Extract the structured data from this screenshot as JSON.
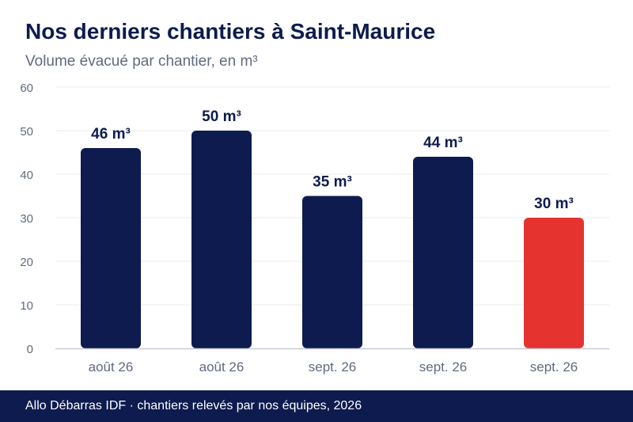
{
  "header": {
    "title": "Nos derniers chantiers à Saint-Maurice",
    "subtitle": "Volume évacué par chantier, en m³"
  },
  "footer": {
    "text": "Allo Débarras IDF · chantiers relevés par nos équipes, 2026"
  },
  "colors": {
    "bar": "#0d1b4f",
    "highlight": "#e5332f",
    "grid": "#e9ebef",
    "axis": "#c9ccd6",
    "tick_label": "#5f6a80",
    "value_label": "#0d1b4f"
  },
  "chart_data": {
    "type": "bar",
    "categories": [
      "août 26",
      "août 26",
      "sept. 26",
      "sept. 26",
      "sept. 26"
    ],
    "values": [
      46,
      50,
      35,
      44,
      30
    ],
    "value_labels": [
      "46 m³",
      "50 m³",
      "35 m³",
      "44 m³",
      "30 m³"
    ],
    "highlight_index": 4,
    "ylim": [
      0,
      60
    ],
    "yticks": [
      0,
      10,
      20,
      30,
      40,
      50,
      60
    ],
    "grid": true,
    "legend": "none"
  }
}
